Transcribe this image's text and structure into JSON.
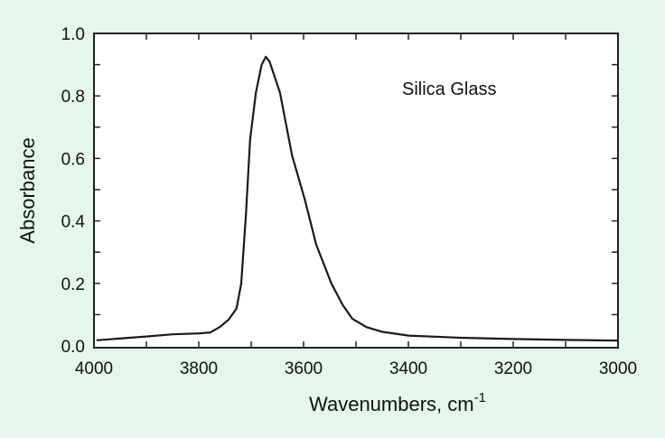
{
  "colors": {
    "background": "#e4f7ea",
    "line": "#1a1a1a",
    "plot_bg": "#ffffff"
  },
  "chart_data": {
    "type": "line",
    "title": "",
    "annotation": "Silica Glass",
    "xlabel": "Wavenumbers, cm",
    "xlabel_sup": "-1",
    "ylabel": "Absorbance",
    "xlim": [
      4000,
      3000
    ],
    "ylim": [
      0,
      1.0
    ],
    "xticks": [
      4000,
      3800,
      3600,
      3400,
      3200,
      3000
    ],
    "xtick_labels": [
      "4000",
      "3800",
      "3600",
      "3400",
      "3200",
      "3000"
    ],
    "yticks": [
      0,
      0.2,
      0.4,
      0.6,
      0.8,
      1.0
    ],
    "ytick_labels": [
      "0.0",
      "0.2",
      "0.4",
      "0.6",
      "0.8",
      "1.0"
    ],
    "grid": false,
    "series": [
      {
        "name": "Silica Glass",
        "x": [
          3995,
          3900,
          3850,
          3800,
          3778,
          3760,
          3743,
          3728,
          3719,
          3710,
          3702,
          3691,
          3680,
          3672,
          3665,
          3659,
          3645,
          3622,
          3598,
          3576,
          3547,
          3525,
          3507,
          3480,
          3450,
          3400,
          3300,
          3200,
          3100,
          3000
        ],
        "y": [
          0.018,
          0.03,
          0.037,
          0.04,
          0.043,
          0.06,
          0.084,
          0.12,
          0.2,
          0.42,
          0.66,
          0.81,
          0.9,
          0.925,
          0.91,
          0.88,
          0.81,
          0.61,
          0.47,
          0.325,
          0.2,
          0.13,
          0.087,
          0.06,
          0.045,
          0.033,
          0.026,
          0.022,
          0.019,
          0.017
        ]
      }
    ]
  }
}
